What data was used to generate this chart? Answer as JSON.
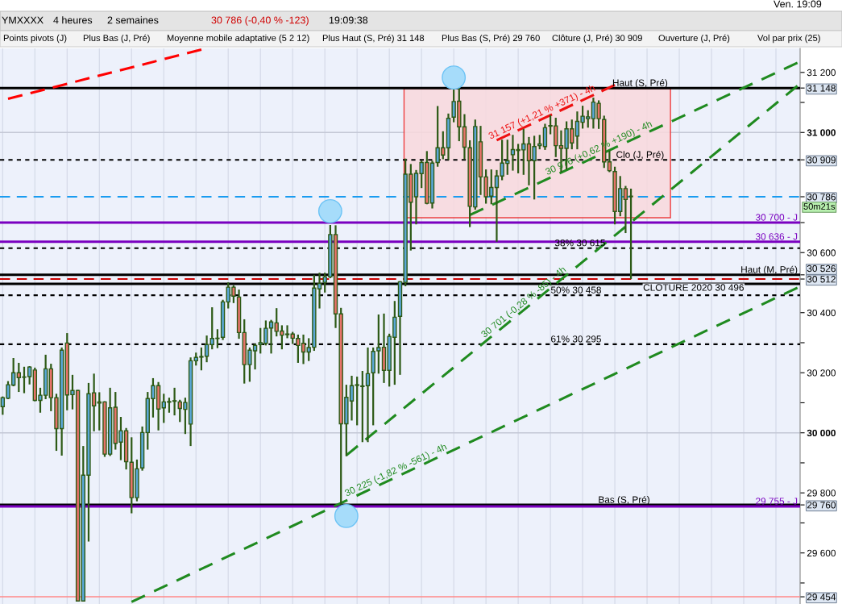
{
  "chart_data": {
    "type": "candlestick",
    "categories": [
      null,
      null,
      null,
      null,
      null,
      null,
      null,
      null,
      null,
      null,
      null,
      null,
      null,
      null,
      null,
      null,
      null,
      null,
      null,
      null,
      null,
      null,
      null,
      null,
      null,
      null,
      null,
      null,
      null,
      null,
      null,
      null,
      null,
      null,
      null,
      null,
      null,
      null,
      null,
      null,
      null,
      null,
      null,
      null,
      null,
      null,
      null,
      null,
      null,
      null,
      null,
      null,
      null,
      null,
      null,
      null,
      null,
      null,
      null,
      null,
      null,
      null,
      null,
      null,
      null,
      null,
      null,
      null,
      null,
      null,
      null,
      null,
      null,
      null,
      null,
      null,
      null,
      null,
      null,
      null,
      null,
      null,
      null,
      null,
      null,
      null,
      null,
      null,
      null,
      null,
      null,
      null,
      null,
      null,
      null,
      null,
      null,
      null,
      null,
      null,
      null,
      null,
      null,
      null,
      null,
      null,
      null,
      null,
      null,
      null,
      null,
      null,
      null,
      null,
      null,
      null,
      null,
      null,
      null,
      null,
      null,
      null,
      null,
      null,
      null,
      null,
      null,
      null,
      null,
      null,
      null,
      null,
      null,
      null,
      null,
      null,
      null,
      null,
      null,
      null,
      null,
      null,
      null,
      null,
      null,
      null,
      null,
      null,
      null
    ],
    "ohlc": [
      [
        30087,
        30121,
        30060,
        30117
      ],
      [
        30115,
        30172,
        30112,
        30160
      ],
      [
        30159,
        30249,
        30155,
        30200
      ],
      [
        30200,
        30233,
        30136,
        30184
      ],
      [
        30186,
        30220,
        30132,
        30185
      ],
      [
        30187,
        30222,
        30161,
        30219
      ],
      [
        30209,
        30217,
        30105,
        30108
      ],
      [
        30108,
        30150,
        30067,
        30125
      ],
      [
        30125,
        30260,
        30112,
        30213
      ],
      [
        30213,
        30230,
        30072,
        30117
      ],
      [
        30117,
        30130,
        29940,
        30014
      ],
      [
        30014,
        30284,
        29924,
        30275
      ],
      [
        30299,
        30332,
        30075,
        30126
      ],
      [
        30127,
        30193,
        30078,
        30141
      ],
      [
        30141,
        30143,
        29440,
        29440
      ],
      [
        29440,
        29956,
        29440,
        29859
      ],
      [
        29859,
        30166,
        29638,
        30130
      ],
      [
        30133,
        30197,
        30005,
        30090
      ],
      [
        30103,
        30135,
        30008,
        30099
      ],
      [
        30103,
        30105,
        29920,
        29929
      ],
      [
        29929,
        30150,
        29923,
        30083
      ],
      [
        30085,
        30136,
        29944,
        29965
      ],
      [
        29969,
        30053,
        29909,
        30007
      ],
      [
        30007,
        30016,
        29878,
        29904
      ],
      [
        29902,
        29985,
        29732,
        29784
      ],
      [
        29784,
        29911,
        29772,
        29880
      ],
      [
        29883,
        30021,
        29874,
        30001
      ],
      [
        30001,
        30136,
        29944,
        30114
      ],
      [
        30114,
        30182,
        30051,
        30157
      ],
      [
        30157,
        30169,
        30008,
        30079
      ],
      [
        30083,
        30130,
        30033,
        30103
      ],
      [
        30102,
        30117,
        30067,
        30104
      ],
      [
        30105,
        30150,
        30058,
        30107
      ],
      [
        30103,
        30110,
        30036,
        30081
      ],
      [
        30078,
        30117,
        29996,
        30101
      ],
      [
        30029,
        30251,
        29956,
        30240
      ],
      [
        30240,
        30267,
        30224,
        30251
      ],
      [
        30252,
        30284,
        30208,
        30254
      ],
      [
        30255,
        30324,
        30235,
        30294
      ],
      [
        30294,
        30418,
        30278,
        30314
      ],
      [
        30314,
        30345,
        30282,
        30315
      ],
      [
        30318,
        30443,
        30309,
        30436
      ],
      [
        30436,
        30501,
        30414,
        30485
      ],
      [
        30485,
        30491,
        30432,
        30455
      ],
      [
        30452,
        30477,
        30313,
        30334
      ],
      [
        30334,
        30378,
        30164,
        30227
      ],
      [
        30227,
        30284,
        30170,
        30275
      ],
      [
        30273,
        30297,
        30211,
        30291
      ],
      [
        30294,
        30349,
        30264,
        30300
      ],
      [
        30298,
        30374,
        30291,
        30348
      ],
      [
        30349,
        30376,
        30264,
        30369
      ],
      [
        30366,
        30415,
        30321,
        30338
      ],
      [
        30339,
        30358,
        30278,
        30325
      ],
      [
        30329,
        30358,
        30315,
        30327
      ],
      [
        30329,
        30336,
        30296,
        30315
      ],
      [
        30314,
        30327,
        30233,
        30291
      ],
      [
        30298,
        30327,
        30229,
        30269
      ],
      [
        30269,
        30315,
        30239,
        30284
      ],
      [
        30285,
        30526,
        30273,
        30482
      ],
      [
        30479,
        30533,
        30414,
        30497
      ],
      [
        30501,
        30533,
        30467,
        30519
      ],
      [
        30519,
        30692,
        30515,
        30660
      ],
      [
        30660,
        30691,
        30349,
        30396
      ],
      [
        30396,
        30416,
        29760,
        30030
      ],
      [
        30030,
        30160,
        29922,
        30118
      ],
      [
        30106,
        30190,
        30041,
        30157
      ],
      [
        30158,
        30187,
        30025,
        30160
      ],
      [
        30156,
        30206,
        29969,
        30154
      ],
      [
        30157,
        30284,
        29969,
        30197
      ],
      [
        30200,
        30284,
        30025,
        30271
      ],
      [
        30273,
        30394,
        30197,
        30284
      ],
      [
        30285,
        30397,
        30166,
        30208
      ],
      [
        30208,
        30330,
        30154,
        30321
      ],
      [
        30318,
        30439,
        30160,
        30385
      ],
      [
        30388,
        30505,
        30193,
        30503
      ],
      [
        30501,
        30913,
        30488,
        30861
      ],
      [
        30861,
        30895,
        30607,
        30768
      ],
      [
        30786,
        30875,
        30694,
        30864
      ],
      [
        30863,
        30906,
        30815,
        30900
      ],
      [
        30900,
        30938,
        30761,
        30764
      ],
      [
        30765,
        30906,
        30747,
        30898
      ],
      [
        30900,
        31088,
        30886,
        30949
      ],
      [
        30949,
        31004,
        30911,
        30925
      ],
      [
        30949,
        31063,
        30909,
        31047
      ],
      [
        31051,
        31148,
        31034,
        31103
      ],
      [
        31104,
        31148,
        30971,
        31019
      ],
      [
        31019,
        31061,
        30911,
        30951
      ],
      [
        30949,
        30974,
        30685,
        30754
      ],
      [
        30752,
        31043,
        30743,
        31020
      ],
      [
        30969,
        31022,
        30792,
        30852
      ],
      [
        30852,
        30877,
        30763,
        30786
      ],
      [
        30788,
        30877,
        30761,
        30817
      ],
      [
        30817,
        30875,
        30636,
        30855
      ],
      [
        30855,
        30976,
        30841,
        30898
      ],
      [
        30897,
        30976,
        30859,
        30906
      ],
      [
        30926,
        30992,
        30873,
        30943
      ],
      [
        30943,
        30962,
        30864,
        30940
      ],
      [
        30942,
        31012,
        30859,
        30962
      ],
      [
        30962,
        30985,
        30824,
        30906
      ],
      [
        30906,
        30989,
        30777,
        30953
      ],
      [
        30956,
        30992,
        30944,
        30962
      ],
      [
        30953,
        31029,
        30942,
        31016
      ],
      [
        31023,
        31058,
        30994,
        31021
      ],
      [
        31022,
        31049,
        30918,
        30956
      ],
      [
        30956,
        31007,
        30868,
        30947
      ],
      [
        30947,
        31037,
        30877,
        31012
      ],
      [
        31012,
        31043,
        30944,
        30965
      ],
      [
        30988,
        31070,
        30944,
        31037
      ],
      [
        31034,
        31089,
        31013,
        31054
      ],
      [
        31046,
        31074,
        31016,
        31052
      ],
      [
        31046,
        31116,
        31013,
        31101
      ],
      [
        31097,
        31107,
        31012,
        31046
      ],
      [
        31043,
        31056,
        30882,
        30902
      ],
      [
        30902,
        30940,
        30868,
        30873
      ],
      [
        30870,
        30886,
        30694,
        30737
      ],
      [
        30737,
        30855,
        30721,
        30813
      ],
      [
        30813,
        30822,
        30665,
        30777
      ],
      [
        30788,
        30813,
        30512,
        30786
      ],
      null,
      null,
      null,
      null,
      null,
      null,
      null,
      null,
      null,
      null,
      null,
      null,
      null,
      null,
      null,
      null,
      null,
      null,
      null,
      null,
      null,
      null,
      null,
      null,
      null,
      null,
      null,
      null,
      null,
      null,
      null
    ],
    "series": [
      {
        "type": "line",
        "color": "#ff0000",
        "line_style": "dashed",
        "values": [
          null,
          31112,
          null,
          null,
          null,
          null,
          null,
          null,
          null,
          null,
          null,
          null,
          null,
          null,
          null,
          null,
          null,
          null,
          null,
          null,
          null,
          null,
          null,
          null,
          null,
          null,
          null,
          null,
          null,
          null,
          null,
          null,
          null,
          null,
          null,
          null,
          null,
          31276,
          null,
          null,
          null,
          null,
          null,
          null,
          null,
          null,
          null,
          null,
          null,
          null,
          null,
          null,
          null,
          null,
          null,
          null,
          null,
          null,
          null,
          null,
          null,
          null,
          null,
          null,
          null,
          null,
          null,
          null,
          null,
          null,
          null,
          null,
          null,
          null,
          null,
          null,
          null,
          null,
          null,
          null,
          null,
          null,
          null,
          null,
          null,
          null,
          null,
          null,
          null,
          null,
          null,
          null,
          null,
          null,
          null,
          null,
          null,
          null,
          null,
          null,
          null,
          null,
          null,
          null,
          null,
          null,
          null,
          null,
          null,
          null,
          null,
          null,
          null,
          null,
          null,
          null,
          null,
          null,
          null,
          null,
          null,
          null,
          null,
          null,
          null,
          null,
          null,
          null,
          null,
          null,
          null,
          null,
          null,
          null,
          null,
          null,
          null,
          null,
          null,
          null,
          null,
          null,
          null,
          null,
          null,
          null,
          null,
          null,
          null
        ]
      },
      {
        "type": "line",
        "name": "31 157 (+1,21 % +371) - 4h",
        "color": "#ee1111",
        "line_style": "dashed",
        "values": [
          null,
          null,
          null,
          null,
          null,
          null,
          null,
          null,
          null,
          null,
          null,
          null,
          null,
          null,
          null,
          null,
          null,
          null,
          null,
          null,
          null,
          null,
          null,
          null,
          null,
          null,
          null,
          null,
          null,
          null,
          null,
          null,
          null,
          null,
          null,
          null,
          null,
          null,
          null,
          null,
          null,
          null,
          null,
          null,
          null,
          null,
          null,
          null,
          null,
          null,
          null,
          null,
          null,
          null,
          null,
          null,
          null,
          null,
          null,
          null,
          null,
          null,
          null,
          null,
          null,
          null,
          null,
          null,
          null,
          null,
          null,
          null,
          null,
          null,
          null,
          null,
          null,
          null,
          null,
          null,
          null,
          null,
          null,
          null,
          null,
          null,
          null,
          null,
          null,
          null,
          null,
          null,
          30974,
          null,
          null,
          null,
          null,
          null,
          null,
          null,
          null,
          null,
          null,
          null,
          null,
          null,
          null,
          null,
          null,
          null,
          null,
          null,
          null,
          null,
          31158,
          null,
          null,
          null,
          null,
          null,
          null,
          null,
          null,
          null,
          null,
          null,
          null,
          null,
          null,
          null,
          null,
          null,
          null,
          null,
          null,
          null,
          null,
          null,
          null,
          null,
          null,
          null,
          null,
          null,
          null,
          null,
          null,
          null,
          null
        ]
      },
      {
        "type": "line",
        "name": "30 976 (+0,62 % +190) - 4h",
        "color": "#1f8a1f",
        "line_style": "dashed",
        "values": [
          null,
          null,
          null,
          null,
          null,
          null,
          null,
          null,
          null,
          null,
          null,
          null,
          null,
          null,
          null,
          null,
          null,
          null,
          null,
          null,
          null,
          null,
          null,
          null,
          null,
          null,
          null,
          null,
          null,
          null,
          null,
          null,
          null,
          null,
          null,
          null,
          null,
          null,
          null,
          null,
          null,
          null,
          null,
          null,
          null,
          null,
          null,
          null,
          null,
          null,
          null,
          null,
          null,
          null,
          null,
          null,
          null,
          null,
          null,
          null,
          null,
          null,
          null,
          null,
          null,
          null,
          null,
          null,
          null,
          null,
          null,
          null,
          null,
          null,
          null,
          null,
          null,
          null,
          null,
          null,
          null,
          null,
          null,
          null,
          null,
          null,
          null,
          30725,
          null,
          null,
          null,
          null,
          null,
          null,
          null,
          null,
          null,
          null,
          null,
          null,
          null,
          null,
          null,
          null,
          null,
          null,
          null,
          null,
          null,
          null,
          null,
          null,
          null,
          null,
          null,
          null,
          null,
          null,
          null,
          null,
          null,
          null,
          null,
          null,
          null,
          null,
          null,
          null,
          null,
          null,
          null,
          null,
          null,
          null,
          null,
          null,
          null,
          null,
          null,
          null,
          null,
          null,
          null,
          null,
          null,
          null,
          null,
          null,
          31232
        ]
      },
      {
        "type": "line",
        "name": "30 701 (-0,28 % -85) - 4h",
        "color": "#1f8a1f",
        "line_style": "dashed",
        "values": [
          null,
          null,
          null,
          null,
          null,
          null,
          null,
          null,
          null,
          null,
          null,
          null,
          null,
          null,
          null,
          null,
          null,
          null,
          null,
          null,
          null,
          null,
          null,
          null,
          null,
          null,
          null,
          null,
          null,
          null,
          null,
          null,
          null,
          null,
          null,
          null,
          null,
          null,
          null,
          null,
          null,
          null,
          null,
          null,
          null,
          null,
          null,
          null,
          null,
          null,
          null,
          null,
          null,
          null,
          null,
          null,
          null,
          null,
          null,
          null,
          null,
          null,
          null,
          null,
          29925,
          null,
          null,
          null,
          null,
          null,
          null,
          null,
          null,
          null,
          null,
          null,
          null,
          null,
          null,
          null,
          null,
          null,
          null,
          null,
          null,
          null,
          null,
          null,
          null,
          null,
          null,
          null,
          null,
          null,
          null,
          null,
          null,
          null,
          null,
          null,
          null,
          null,
          null,
          null,
          null,
          null,
          null,
          null,
          null,
          null,
          null,
          null,
          null,
          null,
          null,
          null,
          null,
          null,
          null,
          null,
          null,
          null,
          null,
          null,
          null,
          null,
          null,
          null,
          null,
          null,
          null,
          null,
          null,
          null,
          null,
          null,
          null,
          null,
          null,
          null,
          null,
          null,
          null,
          null,
          null,
          null,
          null,
          null,
          31155
        ]
      },
      {
        "type": "line",
        "name": "30 225 (-1,82 % -561) - 4h",
        "color": "#1f8a1f",
        "line_style": "dashed",
        "values": [
          null,
          null,
          null,
          null,
          null,
          null,
          null,
          null,
          null,
          null,
          null,
          null,
          null,
          null,
          null,
          null,
          null,
          null,
          null,
          null,
          null,
          null,
          null,
          null,
          29437,
          null,
          null,
          null,
          null,
          null,
          null,
          null,
          null,
          null,
          null,
          null,
          null,
          null,
          null,
          null,
          null,
          null,
          null,
          null,
          null,
          null,
          null,
          null,
          null,
          null,
          null,
          null,
          null,
          null,
          null,
          null,
          null,
          null,
          null,
          null,
          null,
          null,
          null,
          null,
          null,
          null,
          null,
          null,
          null,
          null,
          null,
          null,
          null,
          null,
          null,
          null,
          null,
          null,
          null,
          null,
          null,
          null,
          null,
          null,
          null,
          null,
          null,
          null,
          null,
          null,
          null,
          null,
          null,
          null,
          null,
          null,
          null,
          null,
          null,
          null,
          null,
          null,
          null,
          null,
          null,
          null,
          null,
          null,
          null,
          null,
          null,
          null,
          null,
          null,
          null,
          null,
          null,
          null,
          null,
          null,
          null,
          null,
          null,
          null,
          null,
          null,
          null,
          null,
          null,
          null,
          null,
          null,
          null,
          null,
          null,
          null,
          null,
          null,
          null,
          null,
          null,
          null,
          null,
          null,
          null,
          null,
          null,
          null,
          30483
        ]
      },
      {
        "type": "scatter",
        "color": "#a6dcfa",
        "marker": "circle",
        "values": [
          null,
          null,
          null,
          null,
          null,
          null,
          null,
          null,
          null,
          null,
          null,
          null,
          null,
          null,
          null,
          null,
          null,
          null,
          null,
          null,
          null,
          null,
          null,
          null,
          null,
          null,
          null,
          null,
          null,
          null,
          null,
          null,
          null,
          null,
          null,
          null,
          null,
          null,
          null,
          null,
          null,
          null,
          null,
          null,
          null,
          null,
          null,
          null,
          null,
          null,
          null,
          null,
          null,
          null,
          null,
          null,
          null,
          null,
          null,
          null,
          null,
          30738,
          null,
          null,
          29723,
          null,
          null,
          null,
          null,
          null,
          null,
          null,
          null,
          null,
          null,
          null,
          null,
          null,
          null,
          null,
          null,
          null,
          null,
          null,
          31183,
          null,
          null,
          null,
          null,
          null,
          null,
          null,
          null,
          null,
          null,
          null,
          null,
          null,
          null,
          null,
          null,
          null,
          null,
          null,
          null,
          null,
          null,
          null,
          null,
          null,
          null,
          null,
          null,
          null,
          null,
          null,
          null,
          null,
          null,
          null,
          null,
          null,
          null,
          null,
          null,
          null,
          null,
          null,
          null,
          null,
          null,
          null,
          null,
          null,
          null,
          null,
          null,
          null,
          null,
          null,
          null,
          null,
          null,
          null,
          null,
          null,
          null,
          null,
          null
        ]
      }
    ],
    "ref_lines": [
      {
        "axis": "y",
        "value": 31148,
        "label": "Haut (S, Pré)",
        "color": "#000000",
        "line_style": "solid"
      },
      {
        "axis": "y",
        "value": 30909,
        "label": "Clo (J, Pré)",
        "color": "#000000",
        "line_style": "dotted"
      },
      {
        "axis": "y",
        "value": 30786,
        "color": "#1a9cf0",
        "line_style": "dashed"
      },
      {
        "axis": "y",
        "value": 30700,
        "label": "30 700 - J",
        "color": "#7a00c0",
        "line_style": "solid"
      },
      {
        "axis": "y",
        "value": 30636,
        "label": "30 636 - J",
        "color": "#7a00c0",
        "line_style": "solid"
      },
      {
        "axis": "y",
        "value": 30615,
        "label": "38% 30 615",
        "color": "#000000",
        "line_style": "dotted"
      },
      {
        "axis": "y",
        "value": 30526,
        "label": "Haut (M, Pré)",
        "color": "#000000",
        "line_style": "solid"
      },
      {
        "axis": "y",
        "value": 30512,
        "color": "#cc0000",
        "line_style": "dashed"
      },
      {
        "axis": "y",
        "value": 30496,
        "label": "CLOTURE 2020 30 496",
        "color": "#000000",
        "line_style": "solid"
      },
      {
        "axis": "y",
        "value": 30458,
        "label": "50% 30 458",
        "color": "#000000",
        "line_style": "dotted"
      },
      {
        "axis": "y",
        "value": 30295,
        "label": "61% 30 295",
        "color": "#000000",
        "line_style": "dotted"
      },
      {
        "axis": "y",
        "value": 29760,
        "label": "Bas (S, Pré)",
        "color": "#000000",
        "line_style": "solid"
      },
      {
        "axis": "y",
        "value": 29755,
        "label": "29 755 - J",
        "color": "#7a00c0",
        "line_style": "solid"
      },
      {
        "axis": "y",
        "value": 29454,
        "color": "#ff8888",
        "line_style": "solid"
      }
    ],
    "bands": [
      {
        "axis": "y",
        "from": 30716,
        "to": 31146,
        "color": "#f9d9dd"
      }
    ],
    "ylim": [
      29430,
      31280
    ],
    "yticks": [
      {
        "value": 31200,
        "label": "31 200"
      },
      {
        "value": 31148,
        "label": "31 148"
      },
      {
        "value": 31100,
        "label": null
      },
      {
        "value": 31000,
        "label": "31 000"
      },
      {
        "value": 30909,
        "label": "30 909"
      },
      {
        "value": 30786,
        "label": "30 786"
      },
      {
        "value": 30700,
        "label": null
      },
      {
        "value": 30600,
        "label": "30 600"
      },
      {
        "value": 30526,
        "label": "30 526"
      },
      {
        "value": 30512,
        "label": "30 512"
      },
      {
        "value": 30400,
        "label": "30 400"
      },
      {
        "value": 30300,
        "label": null
      },
      {
        "value": 30200,
        "label": "30 200"
      },
      {
        "value": 30100,
        "label": null
      },
      {
        "value": 30000,
        "label": "30 000"
      },
      {
        "value": 29900,
        "label": null
      },
      {
        "value": 29800,
        "label": "29 800"
      },
      {
        "value": 29760,
        "label": "29 760"
      },
      {
        "value": 29700,
        "label": null
      },
      {
        "value": 29600,
        "label": "29 600"
      },
      {
        "value": 29500,
        "label": null
      },
      {
        "value": 29454,
        "label": "29 454"
      }
    ],
    "tick_labels": "y",
    "grid": true,
    "annotations": [
      "YMXXXX",
      "4 heures",
      "2 semaines",
      "30 786 (-0,40 % -123)",
      "19:09:38",
      "Ven. 19:09",
      "Points pivots (J)",
      "Plus Bas (J, Pré)",
      "Moyenne mobile adaptative (5 2 12)",
      "Plus Haut (S, Pré) 31 148",
      "Plus Bas (S, Pré) 29 760",
      "Clôture (J, Pré) 30 909",
      "Ouverture (J, Pré)",
      "Vol par prix (25)",
      "50m21s"
    ]
  }
}
